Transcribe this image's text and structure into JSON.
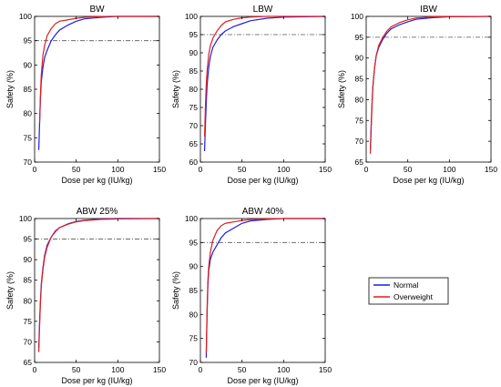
{
  "legend": {
    "entries": [
      {
        "name": "Normal",
        "color": "#1f1fe0"
      },
      {
        "name": "Overweight",
        "color": "#e01f1f"
      }
    ],
    "placement": "bottom-right"
  },
  "colors": {
    "normal": "#1f1fe0",
    "overweight": "#e01f1f",
    "reference": "#555555",
    "axis": "#000000"
  },
  "chart_data": [
    {
      "type": "line",
      "title": "BW",
      "xlabel": "Dose per kg (IU/kg)",
      "ylabel": "Safety (%)",
      "xlim": [
        0,
        150
      ],
      "ylim": [
        70,
        100
      ],
      "xticks": [
        0,
        50,
        100,
        150
      ],
      "yticks": [
        70,
        75,
        80,
        85,
        90,
        95,
        100
      ],
      "reference_line": 95,
      "series": [
        {
          "name": "Normal",
          "x": [
            5,
            6,
            7,
            8,
            10,
            12,
            15,
            20,
            25,
            30,
            40,
            50,
            60,
            80,
            100,
            150
          ],
          "y": [
            72.5,
            78,
            83,
            86.5,
            89.5,
            91.5,
            93,
            95,
            96.2,
            97.2,
            98.2,
            99,
            99.5,
            99.8,
            100,
            100
          ]
        },
        {
          "name": "Overweight",
          "x": [
            6,
            7,
            8,
            10,
            12,
            15,
            20,
            25,
            30,
            40,
            50,
            60,
            70,
            90,
            150
          ],
          "y": [
            78,
            84,
            88,
            92,
            94,
            96,
            97.5,
            98.5,
            99,
            99.3,
            99.6,
            99.8,
            99.9,
            100,
            100
          ]
        }
      ]
    },
    {
      "type": "line",
      "title": "LBW",
      "xlabel": "Dose per kg (IU/kg)",
      "ylabel": "Safety (%)",
      "xlim": [
        0,
        150
      ],
      "ylim": [
        60,
        100
      ],
      "xticks": [
        0,
        50,
        100,
        150
      ],
      "yticks": [
        60,
        65,
        70,
        75,
        80,
        85,
        90,
        95,
        100
      ],
      "reference_line": 95,
      "series": [
        {
          "name": "Normal",
          "x": [
            5,
            6,
            7,
            8,
            10,
            12,
            15,
            20,
            25,
            30,
            40,
            50,
            60,
            80,
            100,
            150
          ],
          "y": [
            63,
            70,
            76,
            81,
            86,
            89,
            91.5,
            93.5,
            95,
            96,
            97.2,
            98,
            98.8,
            99.5,
            99.8,
            100
          ]
        },
        {
          "name": "Overweight",
          "x": [
            5,
            6,
            7,
            8,
            10,
            12,
            15,
            20,
            25,
            30,
            40,
            50,
            60,
            80,
            150
          ],
          "y": [
            67,
            75,
            81,
            85,
            89.5,
            92,
            94,
            96,
            97.5,
            98.5,
            99.2,
            99.6,
            99.8,
            100,
            100
          ]
        }
      ]
    },
    {
      "type": "line",
      "title": "IBW",
      "xlabel": "Dose per kg (IU/kg)",
      "ylabel": "Safety (%)",
      "xlim": [
        0,
        150
      ],
      "ylim": [
        65,
        100
      ],
      "xticks": [
        0,
        50,
        100,
        150
      ],
      "yticks": [
        65,
        70,
        75,
        80,
        85,
        90,
        95,
        100
      ],
      "reference_line": 95,
      "series": [
        {
          "name": "Normal",
          "x": [
            5,
            6,
            7,
            8,
            10,
            12,
            15,
            20,
            25,
            30,
            40,
            50,
            60,
            80,
            100,
            150
          ],
          "y": [
            68,
            74,
            79,
            83,
            87.5,
            90.5,
            92.5,
            94.5,
            96,
            97,
            98,
            98.7,
            99.3,
            99.7,
            99.9,
            100
          ]
        },
        {
          "name": "Overweight",
          "x": [
            5,
            6,
            7,
            8,
            10,
            12,
            15,
            20,
            25,
            30,
            40,
            50,
            60,
            80,
            150
          ],
          "y": [
            67,
            73,
            78.5,
            83,
            87.5,
            90.5,
            93,
            95,
            96.5,
            97.5,
            98.5,
            99.2,
            99.6,
            99.9,
            100
          ]
        }
      ]
    },
    {
      "type": "line",
      "title": "ABW 25%",
      "xlabel": "Dose per kg (IU/kg)",
      "ylabel": "Safety (%)",
      "xlim": [
        0,
        150
      ],
      "ylim": [
        65,
        100
      ],
      "xticks": [
        0,
        50,
        100,
        150
      ],
      "yticks": [
        65,
        70,
        75,
        80,
        85,
        90,
        95,
        100
      ],
      "reference_line": 95,
      "series": [
        {
          "name": "Normal",
          "x": [
            5,
            6,
            7,
            8,
            10,
            12,
            15,
            20,
            25,
            30,
            40,
            50,
            60,
            80,
            100,
            150
          ],
          "y": [
            68.5,
            75,
            80,
            84,
            88,
            91,
            93.5,
            95.5,
            97,
            97.8,
            98.7,
            99.3,
            99.6,
            99.9,
            100,
            100
          ]
        },
        {
          "name": "Overweight",
          "x": [
            5,
            6,
            7,
            8,
            10,
            12,
            15,
            20,
            25,
            30,
            40,
            50,
            60,
            80,
            100,
            150
          ],
          "y": [
            67.5,
            74,
            79.5,
            83.5,
            87.5,
            90.5,
            93,
            95.5,
            96.8,
            97.8,
            98.6,
            99.2,
            99.5,
            99.8,
            99.9,
            100
          ]
        }
      ]
    },
    {
      "type": "line",
      "title": "ABW 40%",
      "xlabel": "Dose per kg (IU/kg)",
      "ylabel": "Safety (%)",
      "xlim": [
        0,
        150
      ],
      "ylim": [
        70,
        100
      ],
      "xticks": [
        0,
        50,
        100,
        150
      ],
      "yticks": [
        70,
        75,
        80,
        85,
        90,
        95,
        100
      ],
      "reference_line": 95,
      "series": [
        {
          "name": "Normal",
          "x": [
            7,
            8,
            9,
            10,
            12,
            15,
            20,
            25,
            30,
            40,
            50,
            60,
            80,
            100,
            150
          ],
          "y": [
            71,
            80,
            86,
            89,
            91.5,
            93,
            94.5,
            96,
            97,
            98,
            99,
            99.5,
            99.8,
            100,
            100
          ]
        },
        {
          "name": "Overweight",
          "x": [
            7,
            8,
            9,
            10,
            12,
            15,
            20,
            25,
            30,
            40,
            50,
            60,
            80,
            100,
            150
          ],
          "y": [
            72,
            81,
            87,
            90,
            93,
            95.5,
            97.5,
            98.5,
            99,
            99.3,
            99.6,
            99.8,
            99.9,
            100,
            100
          ]
        }
      ]
    }
  ]
}
